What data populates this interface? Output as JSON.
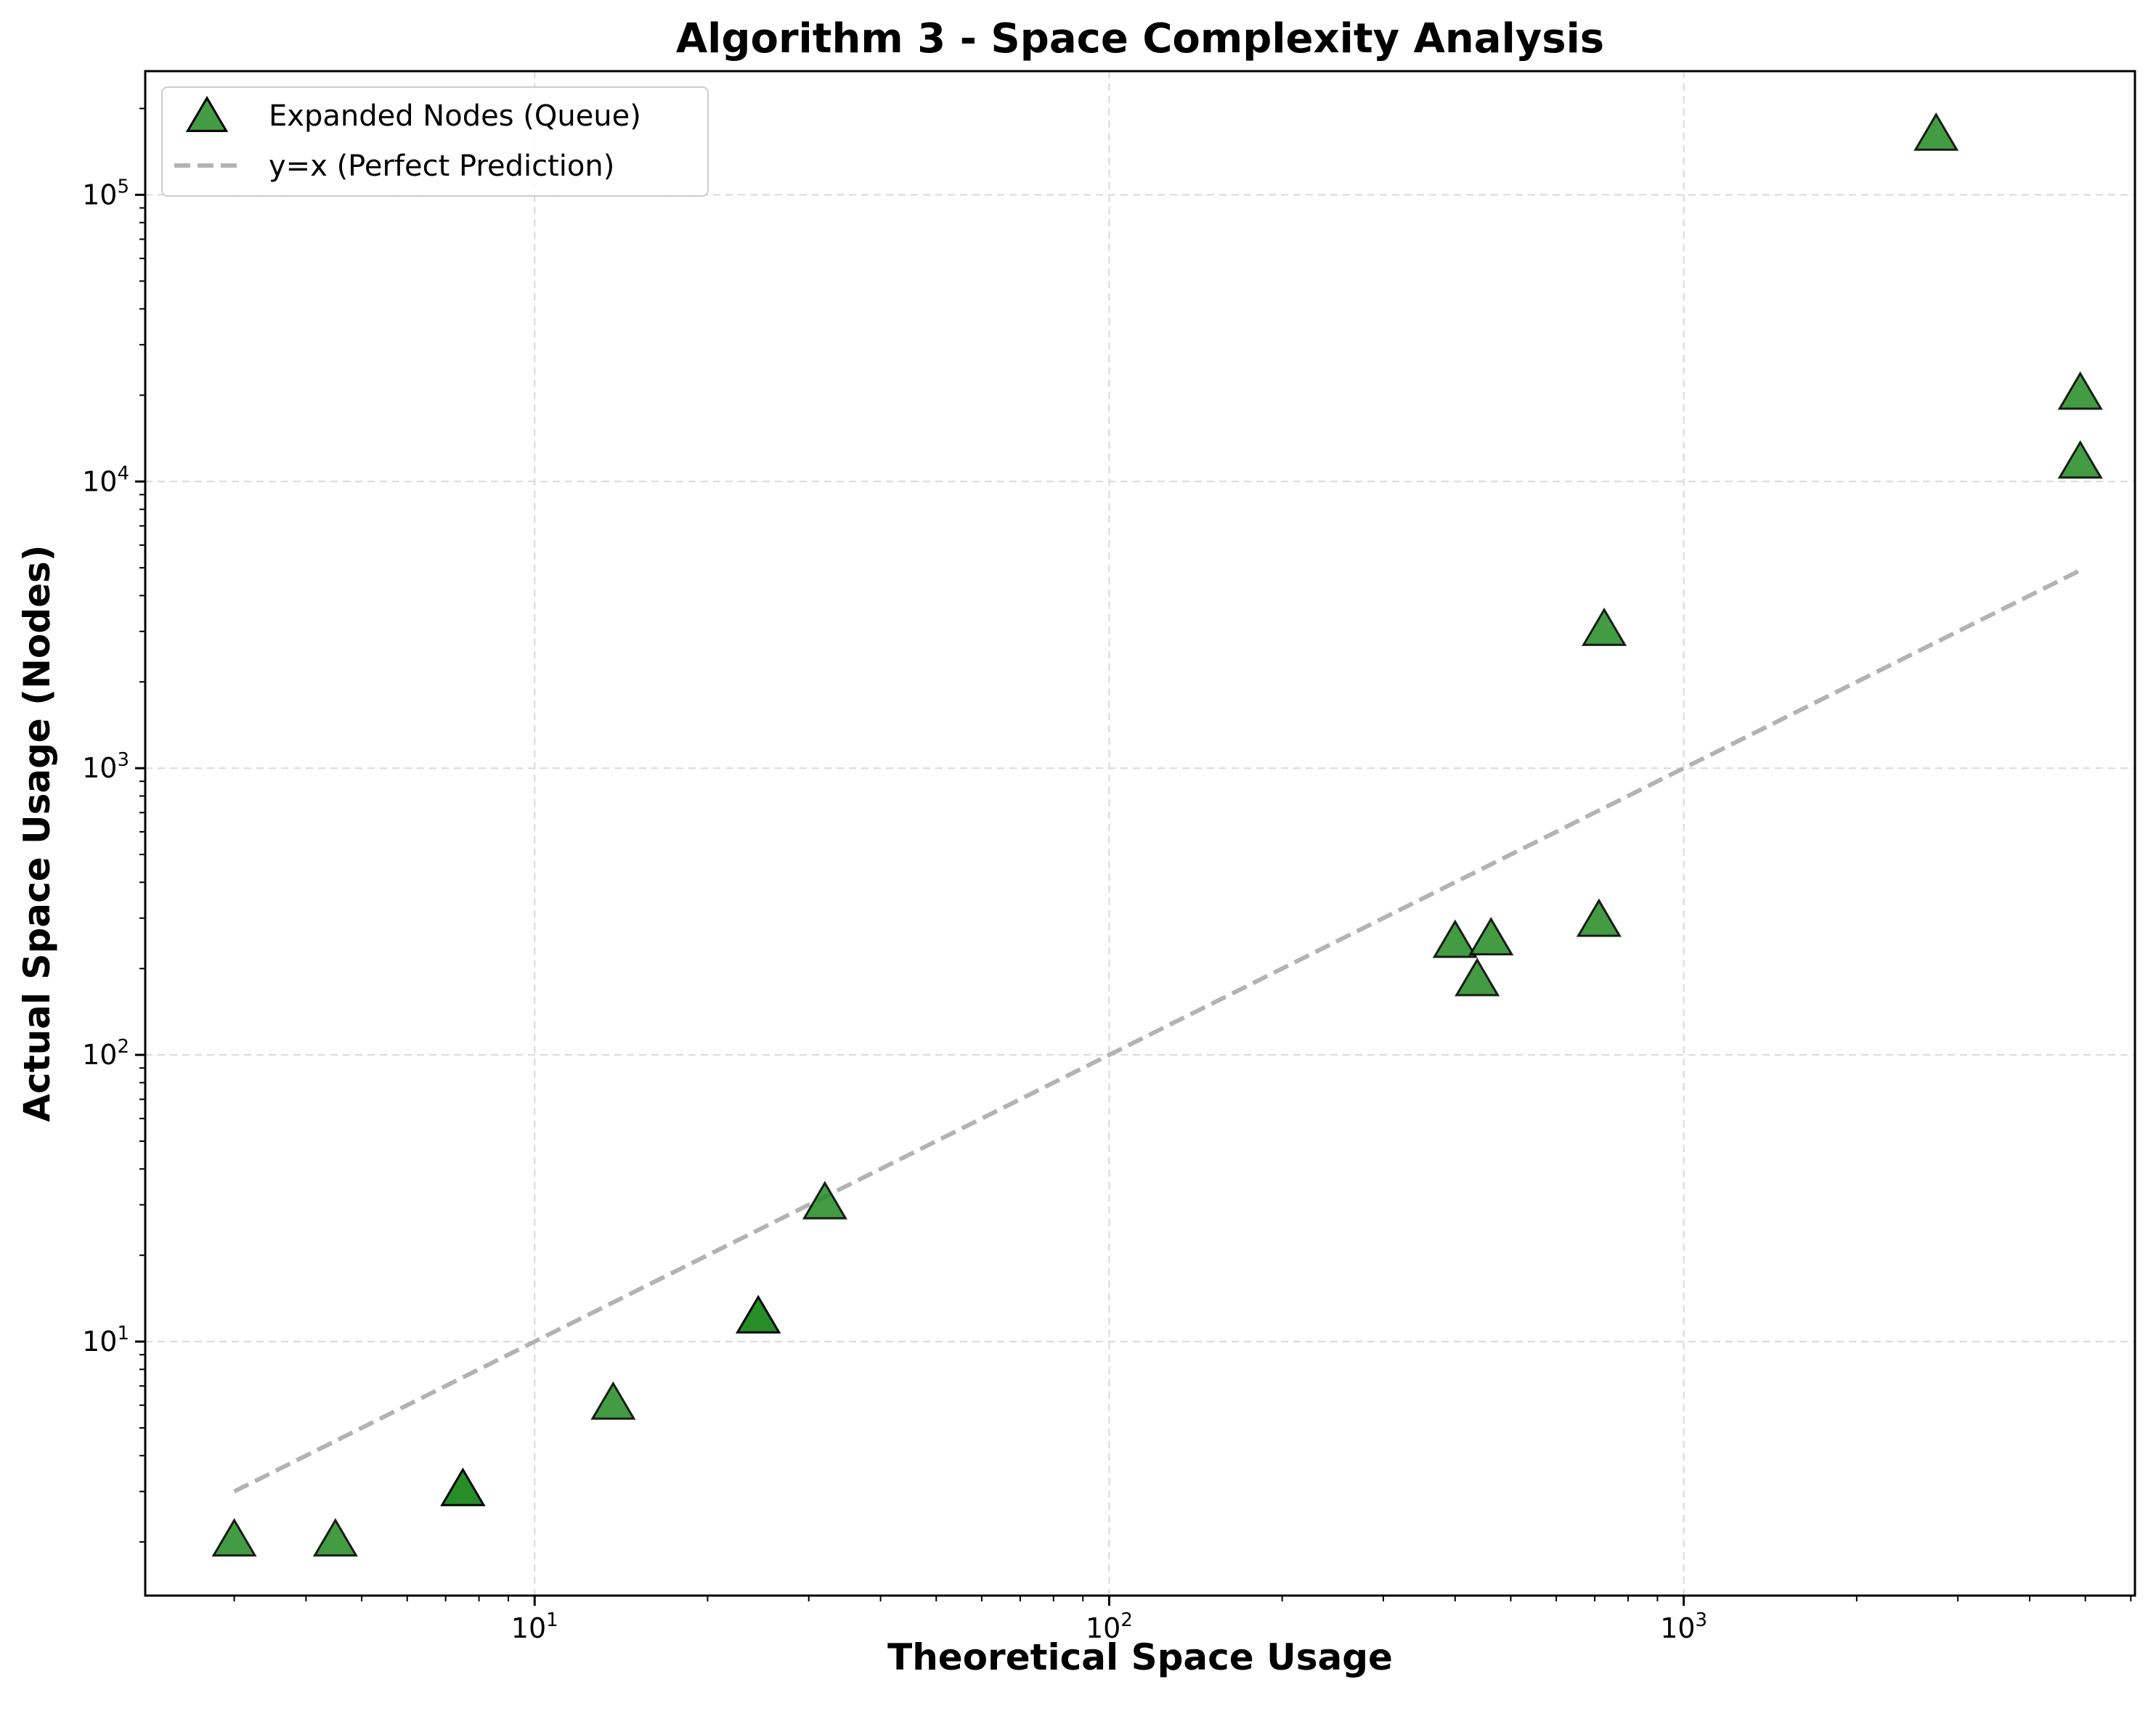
{
  "chart_data": {
    "type": "scatter",
    "title": "Algorithm 3 - Space Complexity Analysis",
    "xlabel": "Theoretical Space Usage",
    "ylabel": "Actual Space Usage (Nodes)",
    "xscale": "log",
    "yscale": "log",
    "xlim": [
      2.1,
      6100
    ],
    "ylim": [
      1.3,
      270000
    ],
    "x_ticks": [
      {
        "base": "10",
        "exp": "1",
        "value": 10
      },
      {
        "base": "10",
        "exp": "2",
        "value": 100
      },
      {
        "base": "10",
        "exp": "3",
        "value": 1000
      }
    ],
    "y_ticks": [
      {
        "base": "10",
        "exp": "1",
        "value": 10
      },
      {
        "base": "10",
        "exp": "2",
        "value": 100
      },
      {
        "base": "10",
        "exp": "3",
        "value": 1000
      },
      {
        "base": "10",
        "exp": "4",
        "value": 10000
      },
      {
        "base": "10",
        "exp": "5",
        "value": 100000
      }
    ],
    "grid": true,
    "legend_position": "top-left",
    "series": [
      {
        "name": "Expanded Nodes (Queue)",
        "kind": "scatter",
        "marker": "triangle",
        "color": "#228b22",
        "edge_color": "#000000",
        "points": [
          {
            "x": 3,
            "y": 2
          },
          {
            "x": 4.5,
            "y": 2
          },
          {
            "x": 7.5,
            "y": 3
          },
          {
            "x": 7.5,
            "y": 3
          },
          {
            "x": 13.7,
            "y": 6
          },
          {
            "x": 24.5,
            "y": 12
          },
          {
            "x": 24.5,
            "y": 12
          },
          {
            "x": 32,
            "y": 30
          },
          {
            "x": 400,
            "y": 245
          },
          {
            "x": 437,
            "y": 180
          },
          {
            "x": 462,
            "y": 250
          },
          {
            "x": 712,
            "y": 290
          },
          {
            "x": 727,
            "y": 3000
          },
          {
            "x": 2750,
            "y": 160000
          },
          {
            "x": 4900,
            "y": 11500
          },
          {
            "x": 4900,
            "y": 20000
          }
        ]
      },
      {
        "name": "y=x (Perfect Prediction)",
        "kind": "line",
        "style": "dashed",
        "color": "#b3b3b3",
        "x": [
          3,
          4900
        ],
        "y": [
          3,
          4900
        ]
      }
    ]
  }
}
